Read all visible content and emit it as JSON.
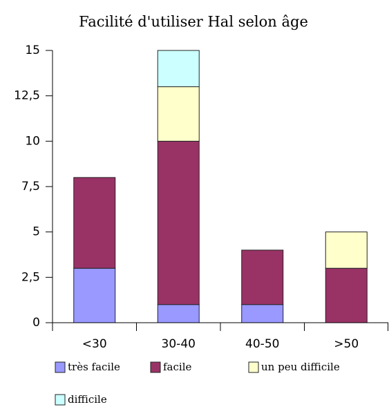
{
  "chart_data": {
    "type": "stacked_bar",
    "title": "Facilité d'utiliser Hal selon âge",
    "categories": [
      "<30",
      "30-40",
      "40-50",
      ">50"
    ],
    "series": [
      {
        "name": "très facile",
        "color": "#9999ff",
        "values": [
          3,
          1,
          1,
          0
        ]
      },
      {
        "name": "facile",
        "color": "#993366",
        "values": [
          5,
          9,
          3,
          3
        ]
      },
      {
        "name": "un peu difficile",
        "color": "#ffffcc",
        "values": [
          0,
          3,
          0,
          2
        ]
      },
      {
        "name": "difficile",
        "color": "#ccffff",
        "values": [
          0,
          2,
          0,
          0
        ]
      }
    ],
    "ylim": [
      0,
      15
    ],
    "yticks": [
      0,
      {
        "value": 2.5,
        "label": "2,5"
      },
      5,
      {
        "value": 7.5,
        "label": "7,5"
      },
      10,
      {
        "value": 12.5,
        "label": "12,5"
      },
      15
    ]
  }
}
